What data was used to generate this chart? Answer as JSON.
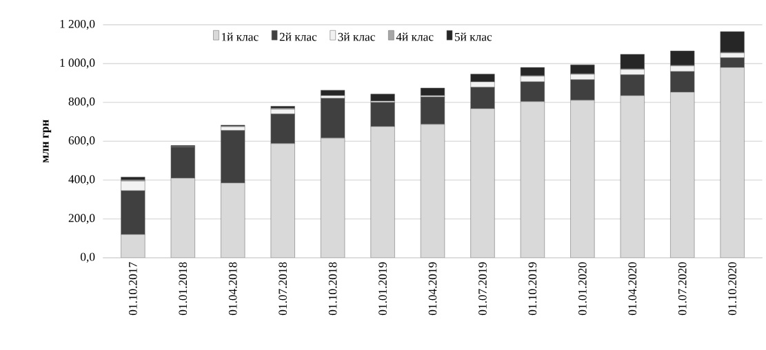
{
  "chart_data": {
    "type": "bar",
    "stacked": true,
    "ylabel": "млн грн",
    "categories": [
      "01.10.2017",
      "01.01.2018",
      "01.04.2018",
      "01.07.2018",
      "01.10.2018",
      "01.01.2019",
      "01.04.2019",
      "01.07.2019",
      "01.10.2019",
      "01.01.2020",
      "01.04.2020",
      "01.07.2020",
      "01.10.2020"
    ],
    "series": [
      {
        "name": "1й клас",
        "color": "#d9d9d9",
        "values": [
          120,
          410,
          385,
          588,
          616,
          676,
          687,
          768,
          804,
          811,
          835,
          853,
          980
        ]
      },
      {
        "name": "2й клас",
        "color": "#404040",
        "values": [
          225,
          160,
          270,
          152,
          205,
          124,
          141,
          110,
          102,
          106,
          107,
          106,
          50
        ]
      },
      {
        "name": "3й клас",
        "color": "#f2f2f2",
        "values": [
          50,
          null,
          20,
          25,
          14,
          7,
          7,
          28,
          29,
          28,
          28,
          29,
          25
        ]
      },
      {
        "name": "4й клас",
        "color": "#a6a6a6",
        "values": [
          5,
          3,
          3,
          5,
          null,
          null,
          null,
          null,
          3,
          3,
          3,
          3,
          3
        ]
      },
      {
        "name": "5й клас",
        "color": "#262626",
        "values": [
          15,
          5,
          5,
          10,
          28,
          36,
          39,
          40,
          42,
          46,
          75,
          74,
          107
        ]
      }
    ],
    "ylim": [
      0,
      1200
    ],
    "yticks": [
      {
        "value": 0,
        "label": "0,0"
      },
      {
        "value": 200,
        "label": "200,0"
      },
      {
        "value": 400,
        "label": "400,0"
      },
      {
        "value": 600,
        "label": "600,0"
      },
      {
        "value": 800,
        "label": "800,0"
      },
      {
        "value": 1000,
        "label": "1 000,0"
      },
      {
        "value": 1200,
        "label": "1 200,0"
      }
    ],
    "grid": "y",
    "legend": "top"
  }
}
